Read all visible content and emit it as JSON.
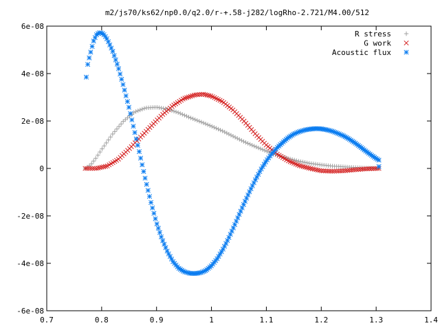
{
  "chart_data": {
    "type": "scatter",
    "title": "m2/js70/ks62/np0.0/q2.0/r-+.58-j282/logRho-2.721/M4.00/512",
    "xlabel": "",
    "ylabel": "",
    "xlim": [
      0.7,
      1.4
    ],
    "ylim": [
      -6e-08,
      6e-08
    ],
    "x_ticks": [
      0.7,
      0.8,
      0.9,
      1.0,
      1.1,
      1.2,
      1.3,
      1.4
    ],
    "x_tick_labels": [
      "0.7",
      "0.8",
      "0.9",
      "1",
      "1.1",
      "1.2",
      "1.3",
      "1.4"
    ],
    "y_ticks": [
      -6e-08,
      -4e-08,
      -2e-08,
      0,
      2e-08,
      4e-08,
      6e-08
    ],
    "y_tick_labels": [
      "-6e-08",
      "-4e-08",
      "-2e-08",
      "0",
      "2e-08",
      "4e-08",
      "6e-08"
    ],
    "grid": false,
    "legend_position": "top-right",
    "x_range": [
      0.77,
      1.305
    ],
    "series": [
      {
        "name": "R stress",
        "color": "#a0a0a0",
        "marker": "plus",
        "points": [
          [
            0.77,
            0.0
          ],
          [
            0.78,
            1.5e-09
          ],
          [
            0.79,
            4.5e-09
          ],
          [
            0.8,
            8e-09
          ],
          [
            0.82,
            1.45e-08
          ],
          [
            0.84,
            2e-08
          ],
          [
            0.86,
            2.38e-08
          ],
          [
            0.88,
            2.55e-08
          ],
          [
            0.9,
            2.58e-08
          ],
          [
            0.92,
            2.5e-08
          ],
          [
            0.94,
            2.35e-08
          ],
          [
            0.96,
            2.15e-08
          ],
          [
            0.98,
            1.97e-08
          ],
          [
            1.0,
            1.78e-08
          ],
          [
            1.02,
            1.58e-08
          ],
          [
            1.04,
            1.35e-08
          ],
          [
            1.06,
            1.12e-08
          ],
          [
            1.08,
            9.2e-09
          ],
          [
            1.1,
            7.3e-09
          ],
          [
            1.12,
            5.6e-09
          ],
          [
            1.14,
            4.2e-09
          ],
          [
            1.16,
            3e-09
          ],
          [
            1.18,
            2.1e-09
          ],
          [
            1.2,
            1.5e-09
          ],
          [
            1.22,
            1e-09
          ],
          [
            1.24,
            7e-10
          ],
          [
            1.26,
            4e-10
          ],
          [
            1.28,
            2e-10
          ],
          [
            1.305,
            0.0
          ]
        ]
      },
      {
        "name": "G work",
        "color": "#d42020",
        "marker": "cross",
        "points": [
          [
            0.77,
            0.0
          ],
          [
            0.79,
            0.0
          ],
          [
            0.81,
            1e-09
          ],
          [
            0.83,
            3.8e-09
          ],
          [
            0.85,
            8.2e-09
          ],
          [
            0.87,
            1.3e-08
          ],
          [
            0.89,
            1.78e-08
          ],
          [
            0.91,
            2.25e-08
          ],
          [
            0.93,
            2.65e-08
          ],
          [
            0.95,
            2.95e-08
          ],
          [
            0.97,
            3.1e-08
          ],
          [
            0.985,
            3.13e-08
          ],
          [
            1.0,
            3.05e-08
          ],
          [
            1.02,
            2.82e-08
          ],
          [
            1.04,
            2.45e-08
          ],
          [
            1.06,
            1.98e-08
          ],
          [
            1.08,
            1.45e-08
          ],
          [
            1.1,
            9.8e-09
          ],
          [
            1.12,
            6e-09
          ],
          [
            1.14,
            3.2e-09
          ],
          [
            1.16,
            1.2e-09
          ],
          [
            1.18,
            0.0
          ],
          [
            1.2,
            -1e-09
          ],
          [
            1.22,
            -1.2e-09
          ],
          [
            1.24,
            -1e-09
          ],
          [
            1.26,
            -6e-10
          ],
          [
            1.28,
            -2e-10
          ],
          [
            1.305,
            0.0
          ]
        ]
      },
      {
        "name": "Acoustic flux",
        "color": "#0a7cf0",
        "marker": "star",
        "points": [
          [
            0.772,
            3.85e-08
          ],
          [
            0.775,
            4.45e-08
          ],
          [
            0.78,
            4.9e-08
          ],
          [
            0.785,
            5.35e-08
          ],
          [
            0.79,
            5.62e-08
          ],
          [
            0.795,
            5.72e-08
          ],
          [
            0.8,
            5.72e-08
          ],
          [
            0.805,
            5.62e-08
          ],
          [
            0.81,
            5.45e-08
          ],
          [
            0.82,
            4.95e-08
          ],
          [
            0.83,
            4.28e-08
          ],
          [
            0.84,
            3.45e-08
          ],
          [
            0.85,
            2.55e-08
          ],
          [
            0.86,
            1.55e-08
          ],
          [
            0.87,
            5.5e-09
          ],
          [
            0.88,
            -5e-09
          ],
          [
            0.89,
            -1.45e-08
          ],
          [
            0.9,
            -2.3e-08
          ],
          [
            0.91,
            -2.98e-08
          ],
          [
            0.92,
            -3.52e-08
          ],
          [
            0.93,
            -3.93e-08
          ],
          [
            0.94,
            -4.2e-08
          ],
          [
            0.95,
            -4.35e-08
          ],
          [
            0.96,
            -4.42e-08
          ],
          [
            0.97,
            -4.43e-08
          ],
          [
            0.98,
            -4.4e-08
          ],
          [
            0.99,
            -4.3e-08
          ],
          [
            1.0,
            -4.1e-08
          ],
          [
            1.01,
            -3.82e-08
          ],
          [
            1.02,
            -3.45e-08
          ],
          [
            1.03,
            -3e-08
          ],
          [
            1.04,
            -2.5e-08
          ],
          [
            1.05,
            -1.97e-08
          ],
          [
            1.06,
            -1.45e-08
          ],
          [
            1.07,
            -9.5e-09
          ],
          [
            1.08,
            -4.8e-09
          ],
          [
            1.09,
            -5e-10
          ],
          [
            1.1,
            3.2e-09
          ],
          [
            1.11,
            6.2e-09
          ],
          [
            1.12,
            8.8e-09
          ],
          [
            1.13,
            1.1e-08
          ],
          [
            1.14,
            1.3e-08
          ],
          [
            1.15,
            1.45e-08
          ],
          [
            1.16,
            1.55e-08
          ],
          [
            1.17,
            1.62e-08
          ],
          [
            1.18,
            1.66e-08
          ],
          [
            1.19,
            1.68e-08
          ],
          [
            1.2,
            1.67e-08
          ],
          [
            1.21,
            1.63e-08
          ],
          [
            1.22,
            1.57e-08
          ],
          [
            1.23,
            1.48e-08
          ],
          [
            1.24,
            1.38e-08
          ],
          [
            1.25,
            1.25e-08
          ],
          [
            1.26,
            1.1e-08
          ],
          [
            1.27,
            9.3e-09
          ],
          [
            1.28,
            7.5e-09
          ],
          [
            1.29,
            5.8e-09
          ],
          [
            1.3,
            4.2e-09
          ],
          [
            1.305,
            3.5e-09
          ],
          [
            1.305,
            8e-10
          ]
        ]
      }
    ]
  }
}
